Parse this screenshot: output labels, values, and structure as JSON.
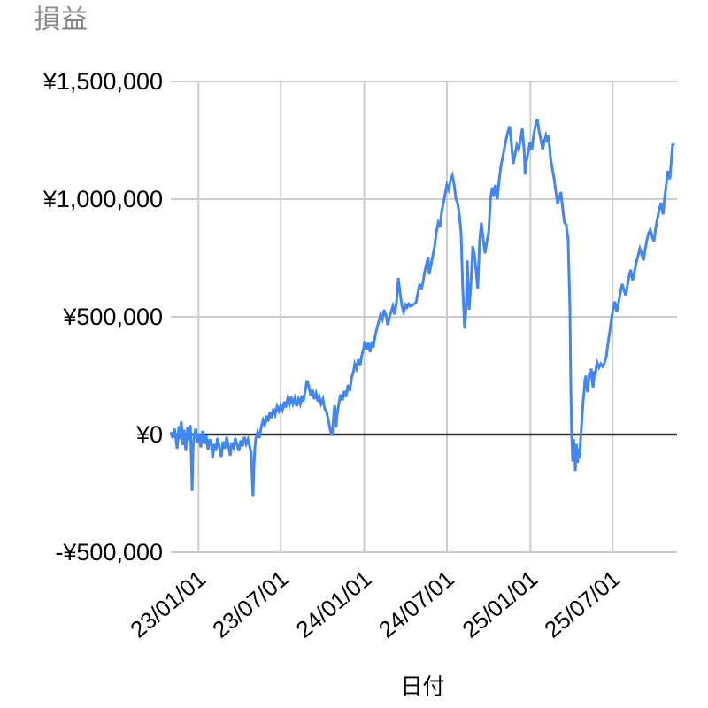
{
  "chart_data": {
    "type": "line",
    "title": "損益",
    "xlabel": "日付",
    "ylabel": "",
    "series_name": "損益",
    "line_color": "#4285f4",
    "grid_color": "#cccccc",
    "baseline_color": "#333333",
    "title_color": "#878787",
    "label_color": "#000000",
    "legend": "none",
    "grid": "on",
    "x_start_date": "22/11/03",
    "x_end_date": "25/11/16",
    "x_total_days": 1109,
    "ylim": [
      -500000,
      1500000
    ],
    "y_ticks": [
      {
        "label": "¥1,500,000",
        "value": 1500000
      },
      {
        "label": "¥1,000,000",
        "value": 1000000
      },
      {
        "label": "¥500,000",
        "value": 500000
      },
      {
        "label": "¥0",
        "value": 0
      },
      {
        "label": "-¥500,000",
        "value": -500000
      }
    ],
    "x_ticks": [
      {
        "label": "23/01/01",
        "day": 61
      },
      {
        "label": "23/07/01",
        "day": 242
      },
      {
        "label": "24/01/01",
        "day": 426
      },
      {
        "label": "24/07/01",
        "day": 608
      },
      {
        "label": "25/01/01",
        "day": 792
      },
      {
        "label": "25/07/01",
        "day": 973
      }
    ],
    "points": [
      [
        0,
        10000
      ],
      [
        4,
        -15000
      ],
      [
        8,
        25000
      ],
      [
        12,
        -30000
      ],
      [
        14,
        -60000
      ],
      [
        18,
        35000
      ],
      [
        19,
        -20000
      ],
      [
        23,
        55000
      ],
      [
        27,
        -45000
      ],
      [
        29,
        20000
      ],
      [
        33,
        -70000
      ],
      [
        37,
        30000
      ],
      [
        39,
        -25000
      ],
      [
        43,
        40000
      ],
      [
        45,
        -90000
      ],
      [
        47,
        -240000
      ],
      [
        49,
        -60000
      ],
      [
        51,
        -10000
      ],
      [
        55,
        25000
      ],
      [
        58,
        -35000
      ],
      [
        62,
        5000
      ],
      [
        66,
        -55000
      ],
      [
        70,
        15000
      ],
      [
        74,
        -40000
      ],
      [
        78,
        -5000
      ],
      [
        82,
        -65000
      ],
      [
        86,
        -20000
      ],
      [
        90,
        -45000
      ],
      [
        92,
        -100000
      ],
      [
        96,
        -40000
      ],
      [
        99,
        -70000
      ],
      [
        103,
        -15000
      ],
      [
        107,
        -55000
      ],
      [
        111,
        -95000
      ],
      [
        115,
        -30000
      ],
      [
        119,
        -60000
      ],
      [
        123,
        -10000
      ],
      [
        127,
        -50000
      ],
      [
        131,
        -90000
      ],
      [
        134,
        -35000
      ],
      [
        138,
        -55000
      ],
      [
        142,
        -15000
      ],
      [
        146,
        -45000
      ],
      [
        150,
        -70000
      ],
      [
        154,
        -25000
      ],
      [
        158,
        -50000
      ],
      [
        162,
        -10000
      ],
      [
        166,
        -40000
      ],
      [
        170,
        -20000
      ],
      [
        173,
        -45000
      ],
      [
        177,
        -80000
      ],
      [
        181,
        -265000
      ],
      [
        183,
        -140000
      ],
      [
        185,
        -60000
      ],
      [
        187,
        -20000
      ],
      [
        191,
        10000
      ],
      [
        195,
        -15000
      ],
      [
        199,
        30000
      ],
      [
        203,
        60000
      ],
      [
        207,
        40000
      ],
      [
        211,
        80000
      ],
      [
        214,
        55000
      ],
      [
        218,
        95000
      ],
      [
        222,
        70000
      ],
      [
        226,
        110000
      ],
      [
        230,
        85000
      ],
      [
        234,
        120000
      ],
      [
        238,
        100000
      ],
      [
        242,
        125000
      ],
      [
        246,
        105000
      ],
      [
        250,
        140000
      ],
      [
        253,
        115000
      ],
      [
        257,
        150000
      ],
      [
        261,
        125000
      ],
      [
        265,
        160000
      ],
      [
        269,
        130000
      ],
      [
        273,
        155000
      ],
      [
        277,
        120000
      ],
      [
        281,
        150000
      ],
      [
        285,
        130000
      ],
      [
        288,
        165000
      ],
      [
        292,
        140000
      ],
      [
        296,
        185000
      ],
      [
        300,
        230000
      ],
      [
        304,
        205000
      ],
      [
        308,
        165000
      ],
      [
        312,
        190000
      ],
      [
        316,
        150000
      ],
      [
        320,
        175000
      ],
      [
        324,
        140000
      ],
      [
        327,
        160000
      ],
      [
        331,
        130000
      ],
      [
        335,
        150000
      ],
      [
        339,
        110000
      ],
      [
        343,
        95000
      ],
      [
        347,
        60000
      ],
      [
        351,
        20000
      ],
      [
        355,
        -5000
      ],
      [
        357,
        40000
      ],
      [
        359,
        90000
      ],
      [
        361,
        125000
      ],
      [
        363,
        70000
      ],
      [
        364,
        30000
      ],
      [
        366,
        80000
      ],
      [
        370,
        130000
      ],
      [
        374,
        170000
      ],
      [
        378,
        145000
      ],
      [
        382,
        185000
      ],
      [
        386,
        160000
      ],
      [
        390,
        210000
      ],
      [
        394,
        185000
      ],
      [
        398,
        240000
      ],
      [
        402,
        265000
      ],
      [
        405,
        300000
      ],
      [
        409,
        280000
      ],
      [
        413,
        320000
      ],
      [
        417,
        295000
      ],
      [
        421,
        340000
      ],
      [
        425,
        370000
      ],
      [
        427,
        395000
      ],
      [
        431,
        360000
      ],
      [
        435,
        390000
      ],
      [
        439,
        350000
      ],
      [
        443,
        395000
      ],
      [
        446,
        370000
      ],
      [
        450,
        420000
      ],
      [
        454,
        450000
      ],
      [
        458,
        480000
      ],
      [
        462,
        510000
      ],
      [
        466,
        490000
      ],
      [
        470,
        530000
      ],
      [
        474,
        505000
      ],
      [
        478,
        465000
      ],
      [
        481,
        495000
      ],
      [
        485,
        520000
      ],
      [
        489,
        545000
      ],
      [
        493,
        510000
      ],
      [
        497,
        560000
      ],
      [
        501,
        665000
      ],
      [
        505,
        600000
      ],
      [
        509,
        545000
      ],
      [
        513,
        520000
      ],
      [
        517,
        550000
      ],
      [
        520,
        540000
      ],
      [
        524,
        555000
      ],
      [
        528,
        545000
      ],
      [
        532,
        550000
      ],
      [
        536,
        555000
      ],
      [
        540,
        560000
      ],
      [
        544,
        600000
      ],
      [
        548,
        640000
      ],
      [
        552,
        615000
      ],
      [
        556,
        655000
      ],
      [
        559,
        690000
      ],
      [
        563,
        725000
      ],
      [
        567,
        755000
      ],
      [
        569,
        680000
      ],
      [
        573,
        720000
      ],
      [
        577,
        760000
      ],
      [
        581,
        800000
      ],
      [
        585,
        860000
      ],
      [
        589,
        900000
      ],
      [
        593,
        880000
      ],
      [
        596,
        940000
      ],
      [
        600,
        980000
      ],
      [
        604,
        1020000
      ],
      [
        608,
        1060000
      ],
      [
        612,
        1040000
      ],
      [
        616,
        1080000
      ],
      [
        620,
        1100000
      ],
      [
        624,
        1060000
      ],
      [
        628,
        1000000
      ],
      [
        632,
        980000
      ],
      [
        635,
        940000
      ],
      [
        639,
        860000
      ],
      [
        643,
        620000
      ],
      [
        647,
        450000
      ],
      [
        651,
        560000
      ],
      [
        653,
        740000
      ],
      [
        657,
        530000
      ],
      [
        661,
        640000
      ],
      [
        665,
        800000
      ],
      [
        669,
        760000
      ],
      [
        672,
        700000
      ],
      [
        676,
        620000
      ],
      [
        680,
        820000
      ],
      [
        684,
        900000
      ],
      [
        688,
        830000
      ],
      [
        692,
        770000
      ],
      [
        696,
        820000
      ],
      [
        700,
        860000
      ],
      [
        704,
        1000000
      ],
      [
        708,
        1050000
      ],
      [
        711,
        1010000
      ],
      [
        715,
        1060000
      ],
      [
        719,
        1000000
      ],
      [
        723,
        1080000
      ],
      [
        727,
        1140000
      ],
      [
        731,
        1180000
      ],
      [
        735,
        1220000
      ],
      [
        739,
        1260000
      ],
      [
        743,
        1290000
      ],
      [
        746,
        1310000
      ],
      [
        750,
        1240000
      ],
      [
        754,
        1150000
      ],
      [
        758,
        1190000
      ],
      [
        762,
        1230000
      ],
      [
        766,
        1210000
      ],
      [
        770,
        1250000
      ],
      [
        774,
        1300000
      ],
      [
        778,
        1210000
      ],
      [
        780,
        1105000
      ],
      [
        783,
        1160000
      ],
      [
        787,
        1200000
      ],
      [
        791,
        1240000
      ],
      [
        795,
        1210000
      ],
      [
        799,
        1270000
      ],
      [
        803,
        1310000
      ],
      [
        807,
        1340000
      ],
      [
        811,
        1290000
      ],
      [
        815,
        1250000
      ],
      [
        819,
        1210000
      ],
      [
        822,
        1240000
      ],
      [
        826,
        1270000
      ],
      [
        830,
        1240000
      ],
      [
        832,
        1270000
      ],
      [
        836,
        1180000
      ],
      [
        840,
        1130000
      ],
      [
        844,
        1090000
      ],
      [
        848,
        1030000
      ],
      [
        852,
        980000
      ],
      [
        856,
        1010000
      ],
      [
        859,
        1030000
      ],
      [
        863,
        960000
      ],
      [
        867,
        900000
      ],
      [
        871,
        890000
      ],
      [
        875,
        830000
      ],
      [
        879,
        530000
      ],
      [
        881,
        200000
      ],
      [
        883,
        0
      ],
      [
        885,
        -115000
      ],
      [
        887,
        -20000
      ],
      [
        889,
        -60000
      ],
      [
        891,
        -155000
      ],
      [
        893,
        -40000
      ],
      [
        895,
        -90000
      ],
      [
        896,
        -120000
      ],
      [
        898,
        -60000
      ],
      [
        900,
        -100000
      ],
      [
        902,
        -30000
      ],
      [
        904,
        20000
      ],
      [
        906,
        80000
      ],
      [
        908,
        140000
      ],
      [
        910,
        180000
      ],
      [
        912,
        230000
      ],
      [
        914,
        250000
      ],
      [
        916,
        200000
      ],
      [
        918,
        180000
      ],
      [
        920,
        220000
      ],
      [
        922,
        260000
      ],
      [
        924,
        240000
      ],
      [
        926,
        280000
      ],
      [
        928,
        230000
      ],
      [
        930,
        200000
      ],
      [
        932,
        240000
      ],
      [
        933,
        270000
      ],
      [
        935,
        250000
      ],
      [
        937,
        290000
      ],
      [
        939,
        305000
      ],
      [
        943,
        285000
      ],
      [
        947,
        300000
      ],
      [
        951,
        290000
      ],
      [
        955,
        305000
      ],
      [
        959,
        330000
      ],
      [
        963,
        390000
      ],
      [
        967,
        440000
      ],
      [
        971,
        500000
      ],
      [
        975,
        540000
      ],
      [
        978,
        565000
      ],
      [
        982,
        520000
      ],
      [
        986,
        560000
      ],
      [
        990,
        600000
      ],
      [
        994,
        640000
      ],
      [
        998,
        615000
      ],
      [
        1002,
        590000
      ],
      [
        1006,
        640000
      ],
      [
        1010,
        680000
      ],
      [
        1013,
        700000
      ],
      [
        1017,
        655000
      ],
      [
        1021,
        690000
      ],
      [
        1025,
        730000
      ],
      [
        1029,
        760000
      ],
      [
        1033,
        790000
      ],
      [
        1037,
        765000
      ],
      [
        1041,
        740000
      ],
      [
        1045,
        790000
      ],
      [
        1049,
        830000
      ],
      [
        1052,
        855000
      ],
      [
        1056,
        870000
      ],
      [
        1060,
        840000
      ],
      [
        1064,
        820000
      ],
      [
        1068,
        880000
      ],
      [
        1072,
        920000
      ],
      [
        1076,
        960000
      ],
      [
        1080,
        985000
      ],
      [
        1084,
        935000
      ],
      [
        1088,
        1010000
      ],
      [
        1091,
        1060000
      ],
      [
        1095,
        1120000
      ],
      [
        1099,
        1085000
      ],
      [
        1103,
        1180000
      ],
      [
        1105,
        1230000
      ],
      [
        1109,
        1235000
      ]
    ]
  }
}
